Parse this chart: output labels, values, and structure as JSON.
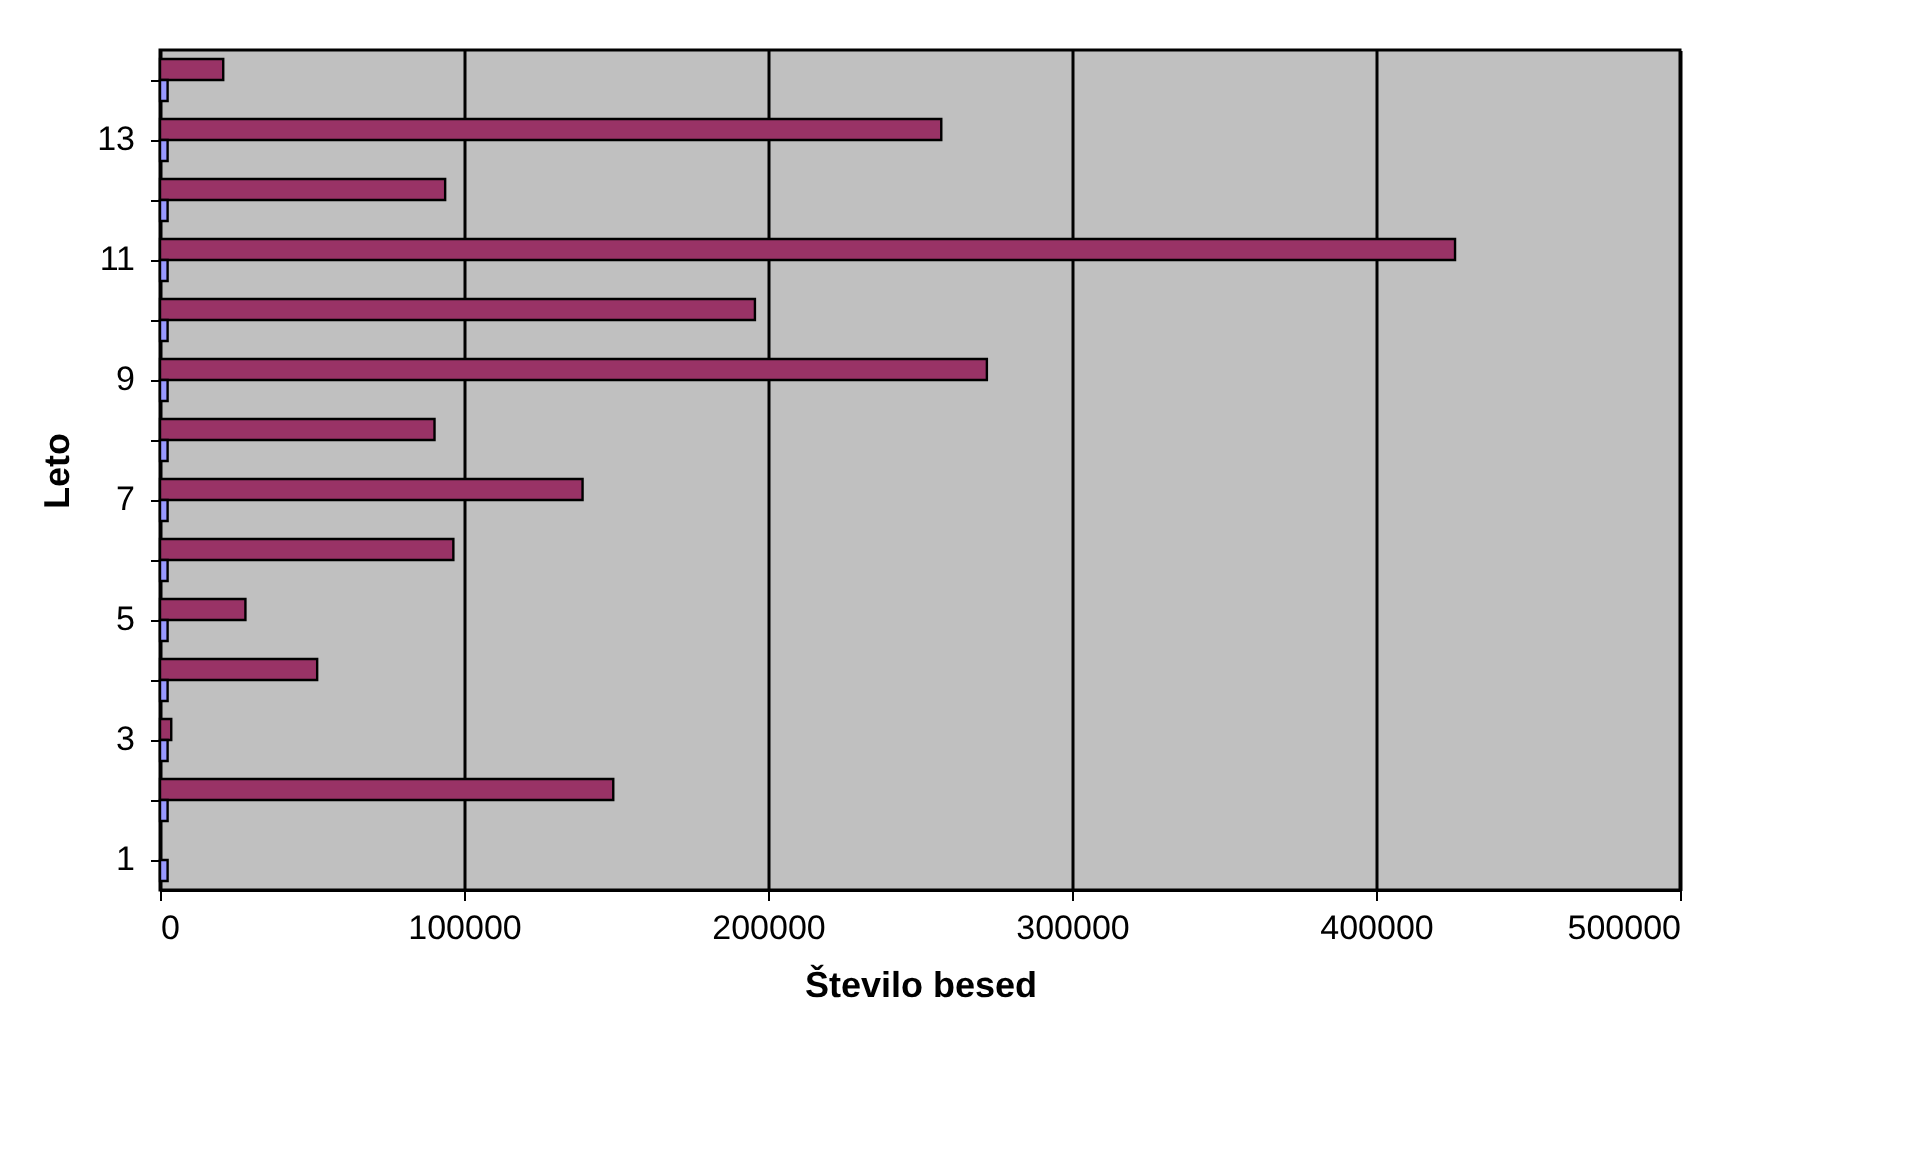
{
  "chart_data": {
    "type": "bar",
    "orientation": "horizontal",
    "xlabel": "Število besed",
    "ylabel": "Leto",
    "categories": [
      null,
      "13",
      null,
      "11",
      null,
      "9",
      null,
      "7",
      null,
      "5",
      null,
      "3",
      null,
      "1"
    ],
    "series": [
      {
        "color": "#993366",
        "values": [
          20800,
          257000,
          93800,
          426000,
          195700,
          272000,
          90300,
          139000,
          96500,
          28100,
          51700,
          3700,
          149100,
          null
        ]
      },
      {
        "color": "#9999ff",
        "values": [
          2500,
          2500,
          2500,
          2500,
          2500,
          2500,
          2500,
          2500,
          2500,
          2500,
          2500,
          2500,
          2500,
          2500
        ]
      }
    ],
    "xlim": [
      0,
      500000
    ],
    "xticks": [
      0,
      100000,
      200000,
      300000,
      400000,
      500000
    ],
    "grid": "x",
    "legend": false
  }
}
